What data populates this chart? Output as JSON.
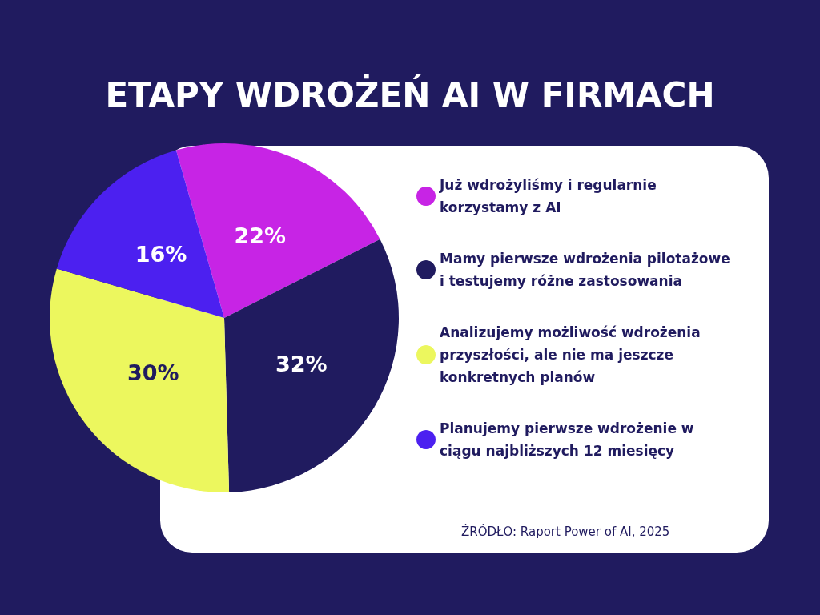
{
  "chart_data": {
    "type": "pie",
    "title": "ETAPY WDROŻEŃ AI W FIRMACH",
    "categories": [
      "Już wdrożyliśmy i regularnie korzystamy z AI",
      "Mamy pierwsze wdrożenia pilotażowe i testujemy różne zastosowania",
      "Analizujemy możliwość wdrożenia przyszłości, ale nie ma jeszcze konkretnych planów",
      "Planujemy pierwsze wdrożenie w ciągu najbliższych 12 miesięcy"
    ],
    "values": [
      22,
      32,
      30,
      16
    ],
    "value_labels": [
      "22%",
      "32%",
      "30%",
      "16%"
    ],
    "colors": [
      "#c724e5",
      "#201b5f",
      "#ecf75e",
      "#4c20f0"
    ],
    "legend": "right",
    "annotations": [
      "ŹRÓDŁO: Raport Power of AI, 2025"
    ]
  }
}
